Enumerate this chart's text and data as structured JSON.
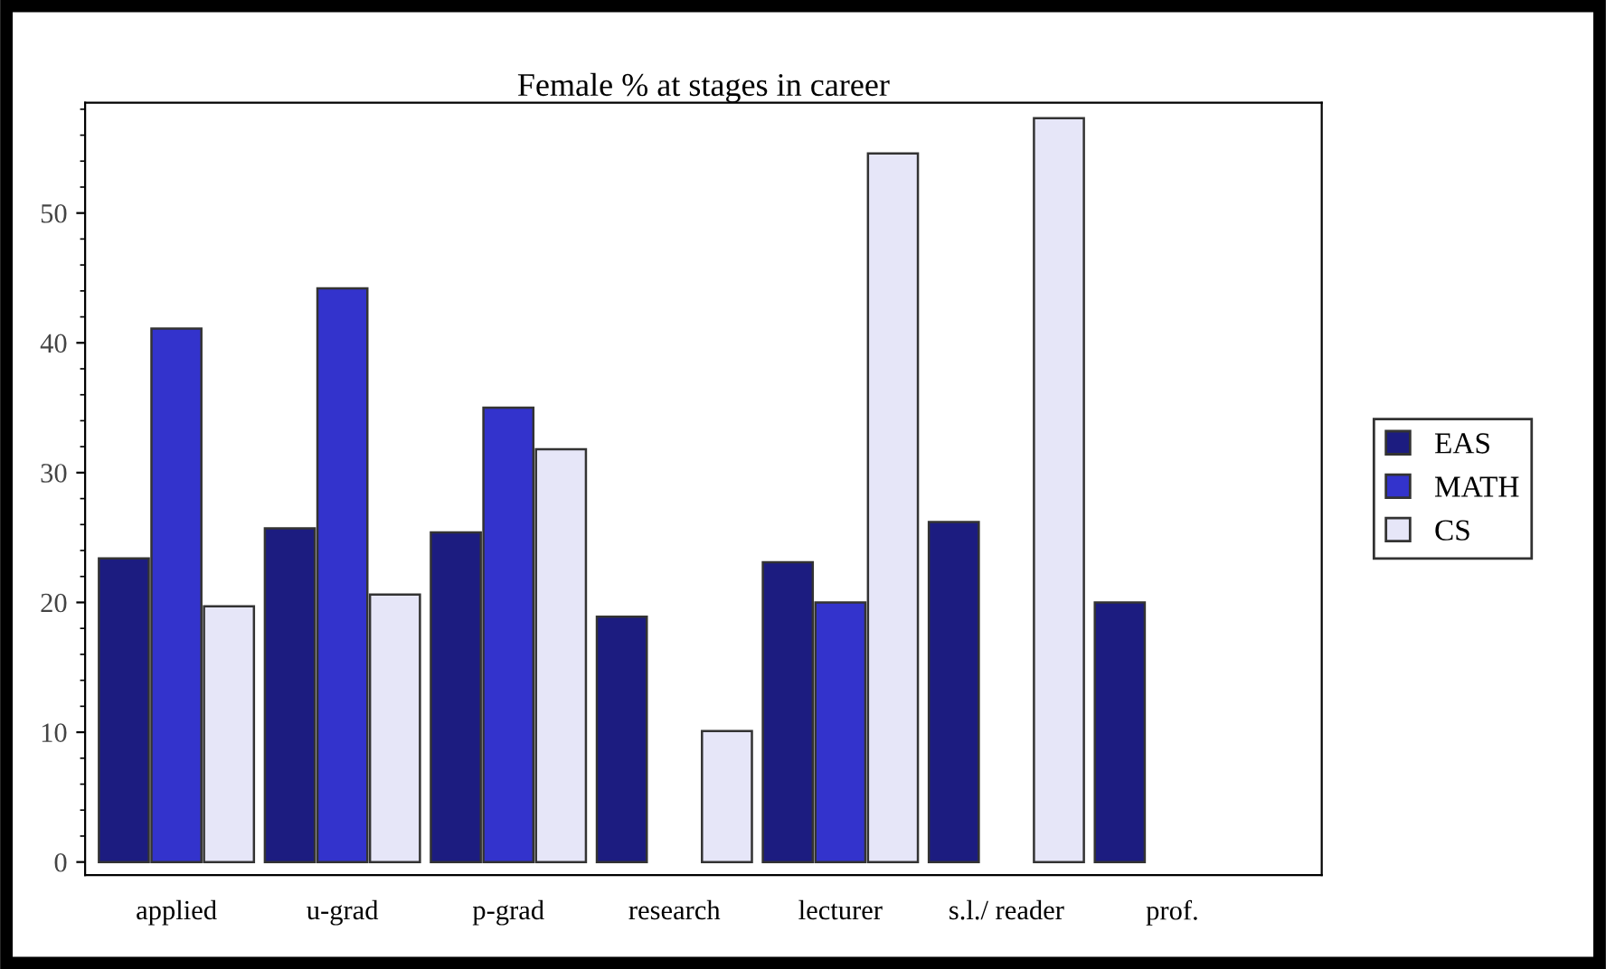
{
  "chart_data": {
    "type": "bar",
    "title": "Female % at stages in career",
    "categories": [
      "applied",
      "u-grad",
      "p-grad",
      "research",
      "lecturer",
      "s.l./ reader",
      "prof."
    ],
    "series": [
      {
        "name": "EAS",
        "color": "#1c1c80",
        "values": [
          23.4,
          25.7,
          25.4,
          18.9,
          23.1,
          26.2,
          20.0
        ]
      },
      {
        "name": "MATH",
        "color": "#3333cc",
        "values": [
          41.1,
          44.2,
          35.0,
          null,
          20.0,
          null,
          null
        ]
      },
      {
        "name": "CS",
        "color": "#e6e6f8",
        "values": [
          19.7,
          20.6,
          31.8,
          10.1,
          54.6,
          57.3,
          null
        ]
      }
    ],
    "ylim": [
      -1,
      58.5
    ],
    "yticks": [
      0,
      10,
      20,
      30,
      40,
      50
    ],
    "grid": false,
    "legend": "right"
  }
}
